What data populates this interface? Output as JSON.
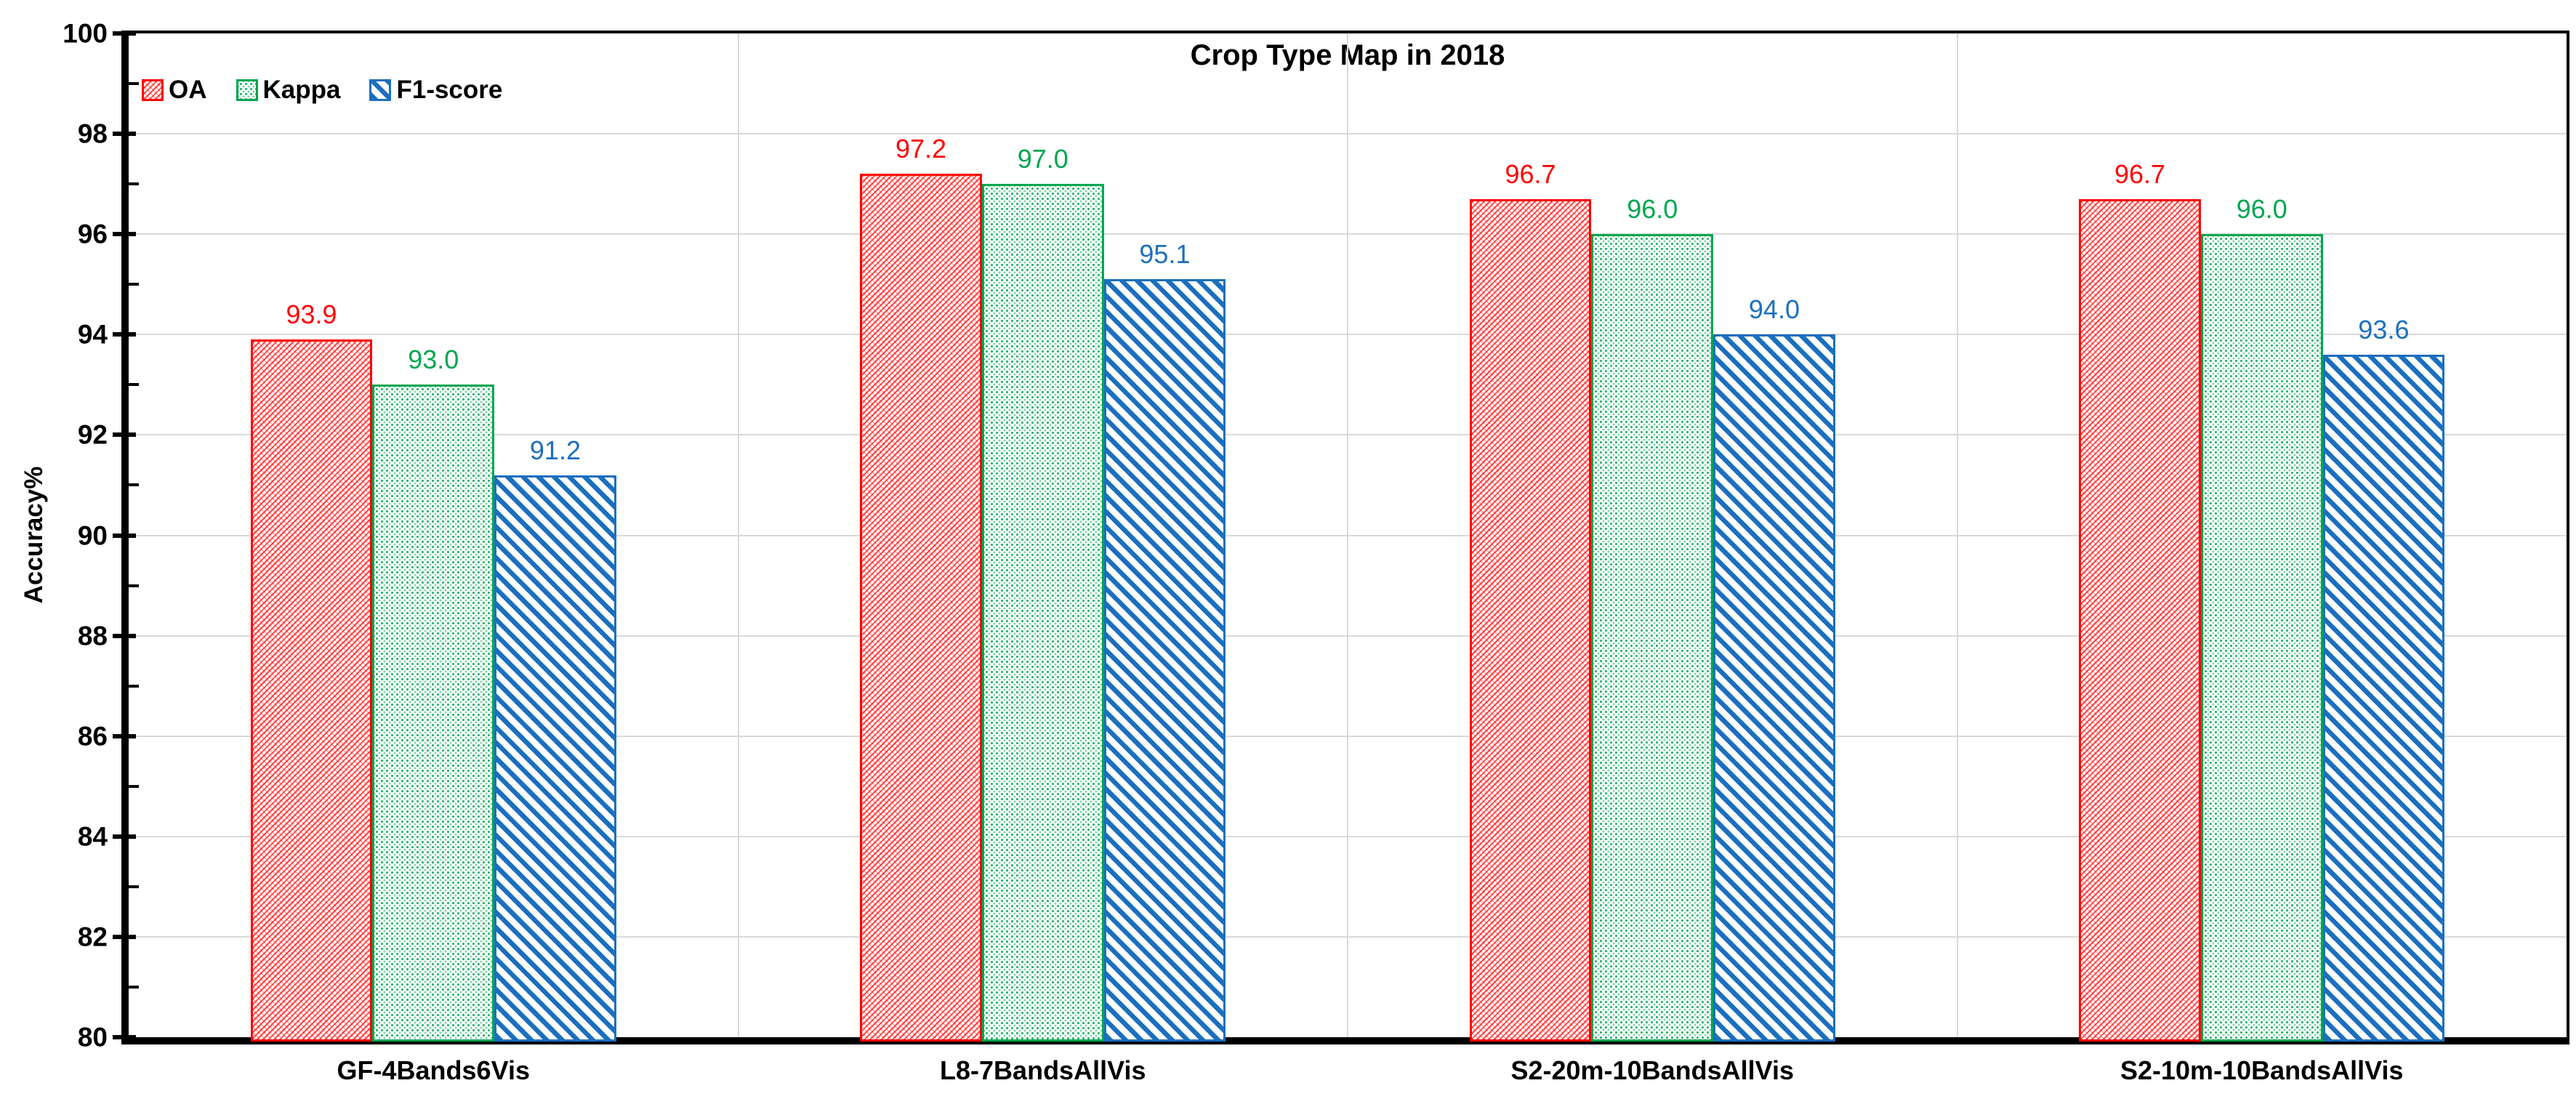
{
  "title": "Crop Type Map in 2018",
  "y_axis": {
    "label": "Accuracy%",
    "min": 80,
    "max": 100,
    "major_step": 2,
    "minor_step": 1,
    "tick_labels": [
      "80",
      "82",
      "84",
      "86",
      "88",
      "90",
      "92",
      "94",
      "96",
      "98",
      "100"
    ]
  },
  "legend": {
    "position": "top-left",
    "entries": [
      "OA",
      "Kappa",
      "F1-score"
    ]
  },
  "colors": {
    "oa": "#FF0000",
    "kappa": "#00A650",
    "f1_score": "#1B6FBF",
    "gridline": "#D9D9D9",
    "axis": "#000000",
    "text": "#000000",
    "background": "#FFFFFF"
  },
  "chart_data": {
    "type": "bar",
    "title": "Crop Type Map in 2018",
    "xlabel": "",
    "ylabel": "Accuracy%",
    "ylim": [
      80,
      100
    ],
    "ytick_step": 2,
    "grid": "horizontal major gridlines and vertical category separators, light gray",
    "legend_position": "top-left inside plot",
    "value_labels": true,
    "categories": [
      "GF-4Bands6Vis",
      "L8-7BandsAllVis",
      "S2-20m-10BandsAllVis",
      "S2-10m-10BandsAllVis"
    ],
    "series": [
      {
        "name": "OA",
        "color": "#FF0000",
        "pattern": "diagonal-crosshatch",
        "values": [
          93.9,
          97.2,
          96.7,
          96.7
        ]
      },
      {
        "name": "Kappa",
        "color": "#00A650",
        "pattern": "dotted-grid",
        "values": [
          93.0,
          97.0,
          96.0,
          96.0
        ]
      },
      {
        "name": "F1-score",
        "color": "#1B6FBF",
        "pattern": "diagonal-stripes",
        "values": [
          91.2,
          95.1,
          94.0,
          93.6
        ]
      }
    ]
  }
}
